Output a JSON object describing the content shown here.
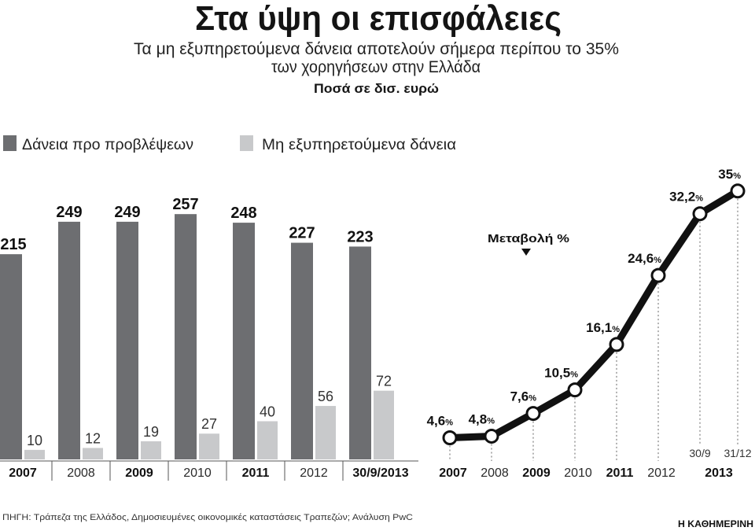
{
  "header": {
    "title": "Στα ύψη οι επισφάλειες",
    "subtitle_lines": [
      "Τα μη εξυπηρετούμενα δάνεια αποτελούν σήμερα περίπου το 35%",
      "των χορηγήσεων στην Ελλάδα"
    ],
    "units": "Ποσά σε δισ. ευρώ"
  },
  "chart_data": [
    {
      "type": "bar",
      "categories": [
        "2007",
        "2008",
        "2009",
        "2010",
        "2011",
        "2012",
        "30/9/2013"
      ],
      "series": [
        {
          "name": "Δάνεια προ προβλέψεων",
          "color": "#6d6e71",
          "values": [
            215,
            249,
            249,
            257,
            248,
            227,
            223
          ]
        },
        {
          "name": "Μη εξυπηρετούμενα δάνεια",
          "color": "#c8c9cb",
          "values": [
            10,
            12,
            19,
            27,
            40,
            56,
            72
          ]
        }
      ],
      "ylim": [
        0,
        300
      ],
      "grid": false
    },
    {
      "type": "line",
      "title": "Μεταβολή %",
      "x_labels": [
        "2007",
        "2008",
        "2009",
        "2010",
        "2011",
        "2012"
      ],
      "x_group": {
        "label": "2013",
        "sub_labels": [
          "30/9",
          "31/12"
        ]
      },
      "values": [
        4.6,
        4.8,
        7.6,
        10.5,
        16.1,
        24.6,
        32.2,
        35
      ],
      "data_labels": [
        "4,6",
        "4,8",
        "7,6",
        "10,5",
        "16,1",
        "24,6",
        "32,2",
        "35"
      ],
      "data_label_unit": "%",
      "ylim": [
        0,
        35
      ],
      "grid": false
    }
  ],
  "source": "ΠΗΓΗ: Τράπεζα της Ελλάδος, Δημοσιευμένες οικονομικές καταστάσεις Τραπεζών; Ανάλυση PwC",
  "publisher": "Η ΚΑΘΗΜΕΡΙΝΗ"
}
